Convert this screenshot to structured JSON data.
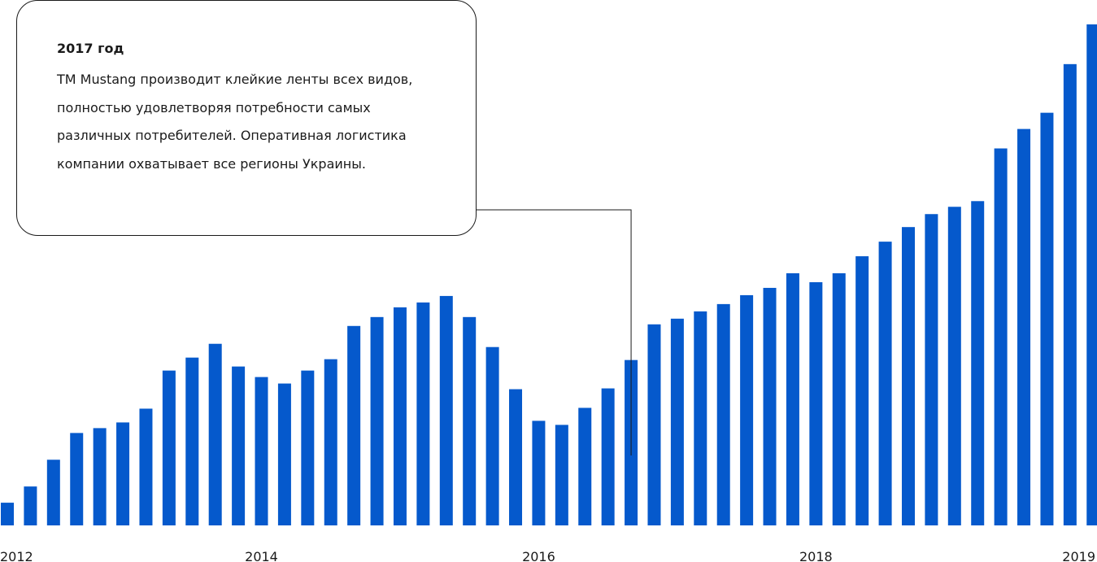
{
  "callout": {
    "title": "2017 год",
    "body": "ТМ Mustang производит клейкие ленты всех видов, полностью удовлетворяя потребности самых различных потребителей. Оперативная логистика компании охватывает все регионы Украины."
  },
  "colors": {
    "bar": "#0559cc",
    "text": "#1a1a1a",
    "line": "#1a1a1a"
  },
  "chart_data": {
    "type": "bar",
    "title": "",
    "xlabel": "",
    "ylabel": "",
    "grid": false,
    "legend": "none",
    "ylim": [
      0,
      620
    ],
    "x_tick_labels": [
      {
        "label": "2012",
        "index": 0
      },
      {
        "label": "2014",
        "index": 11
      },
      {
        "label": "2016",
        "index": 23
      },
      {
        "label": "2018",
        "index": 35
      },
      {
        "label": "2019",
        "index": 47
      }
    ],
    "callout_index": 27,
    "values": [
      28,
      48,
      81,
      114,
      120,
      127,
      144,
      191,
      207,
      224,
      196,
      183,
      175,
      191,
      205,
      246,
      257,
      269,
      275,
      283,
      257,
      220,
      168,
      129,
      124,
      145,
      169,
      204,
      248,
      255,
      264,
      273,
      284,
      293,
      311,
      300,
      311,
      332,
      350,
      368,
      384,
      393,
      400,
      465,
      489,
      509,
      569,
      618
    ]
  }
}
